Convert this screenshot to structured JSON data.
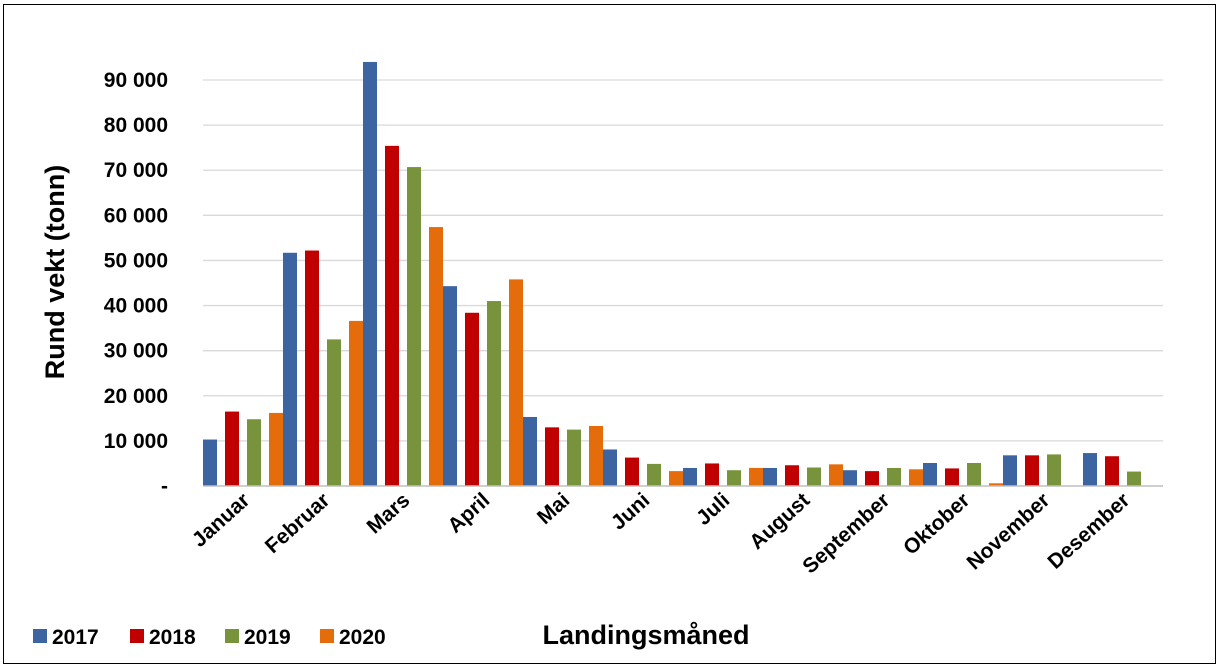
{
  "chart_data": {
    "type": "bar",
    "title": "",
    "xlabel": "Landingsmåned",
    "ylabel": "Rund vekt (tonn)",
    "ylim": [
      0,
      90000
    ],
    "yticks": [
      {
        "value": 0,
        "label": "-"
      },
      {
        "value": 10000,
        "label": "10 000"
      },
      {
        "value": 20000,
        "label": "20 000"
      },
      {
        "value": 30000,
        "label": "30 000"
      },
      {
        "value": 40000,
        "label": "40 000"
      },
      {
        "value": 50000,
        "label": "50 000"
      },
      {
        "value": 60000,
        "label": "60 000"
      },
      {
        "value": 70000,
        "label": "70 000"
      },
      {
        "value": 80000,
        "label": "80 000"
      },
      {
        "value": 90000,
        "label": "90 000"
      }
    ],
    "grid": true,
    "legend_position": "bottom-left",
    "categories": [
      "Januar",
      "Februar",
      "Mars",
      "April",
      "Mai",
      "Juni",
      "Juli",
      "August",
      "September",
      "Oktober",
      "November",
      "Desember"
    ],
    "series": [
      {
        "name": "2017",
        "color": "#3B64A0",
        "values": [
          10300,
          51700,
          94000,
          44300,
          15300,
          8100,
          4000,
          4000,
          3500,
          5100,
          6800,
          7300
        ]
      },
      {
        "name": "2018",
        "color": "#C00000",
        "values": [
          16500,
          52200,
          75400,
          38400,
          13000,
          6300,
          5000,
          4600,
          3300,
          3900,
          6800,
          6600
        ]
      },
      {
        "name": "2019",
        "color": "#77933C",
        "values": [
          14800,
          32500,
          70700,
          41000,
          12500,
          4900,
          3500,
          4100,
          4000,
          5100,
          7000,
          3200
        ]
      },
      {
        "name": "2020",
        "color": "#E46C0A",
        "values": [
          16200,
          36600,
          57400,
          45800,
          13300,
          3300,
          4000,
          4800,
          3700,
          600,
          0,
          0
        ]
      }
    ]
  }
}
